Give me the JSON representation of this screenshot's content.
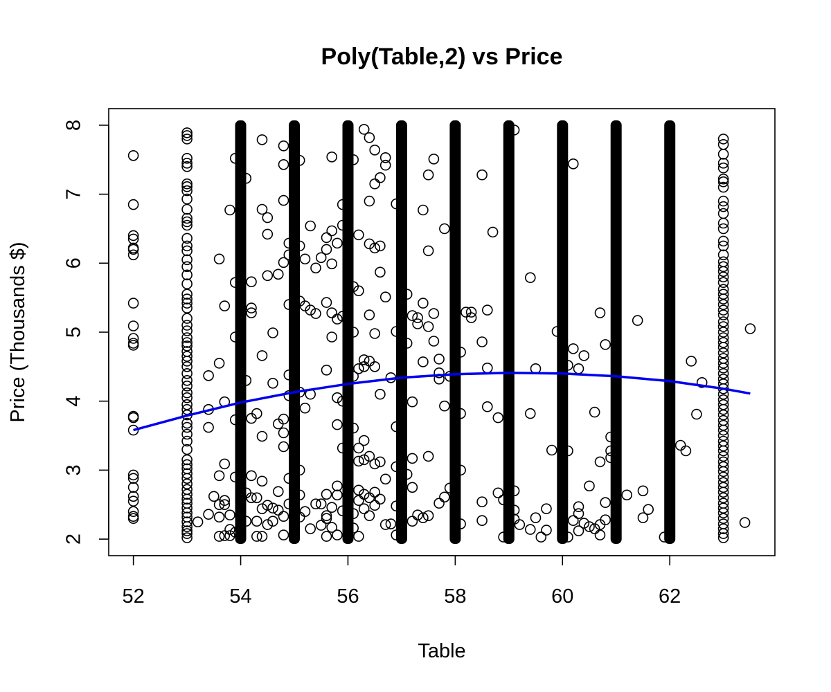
{
  "chart_data": {
    "type": "scatter",
    "title": "Poly(Table,2) vs Price",
    "xlabel": "Table",
    "ylabel": "Price (Thousands $)",
    "xlim": [
      51.54,
      63.96
    ],
    "ylim": [
      1.76,
      8.24
    ],
    "x_ticks": [
      52,
      54,
      56,
      58,
      60,
      62
    ],
    "y_ticks": [
      2,
      3,
      4,
      5,
      6,
      7,
      8
    ],
    "grid": false,
    "legend": "none",
    "marker": "open-circle",
    "point_color": "#000000",
    "fit_line": {
      "name": "",
      "color": "#0000ee",
      "x": [
        52,
        53,
        54,
        55,
        56,
        57,
        58,
        59,
        60,
        61,
        62,
        63,
        63.5
      ],
      "y": [
        3.58,
        3.79,
        3.98,
        4.13,
        4.25,
        4.34,
        4.39,
        4.41,
        4.4,
        4.36,
        4.29,
        4.18,
        4.11
      ]
    },
    "columns": [
      {
        "x": 52,
        "ys": [
          7.56,
          6.85,
          6.4,
          6.35,
          6.22,
          6.2,
          6.12,
          5.42,
          5.09,
          4.91,
          4.84,
          4.81,
          3.78,
          3.76,
          3.58,
          2.93,
          2.88,
          2.75,
          2.62,
          2.55,
          2.4,
          2.33,
          2.3
        ]
      },
      {
        "x": 53,
        "ys": [
          7.89,
          7.85,
          7.8,
          7.52,
          7.45,
          7.4,
          7.15,
          7.11,
          7.05,
          6.93,
          6.78,
          6.65,
          6.6,
          6.55,
          6.36,
          6.25,
          6.18,
          6.05,
          5.95,
          5.83,
          5.7,
          5.55,
          5.48,
          5.42,
          5.35,
          5.2,
          5.1,
          5.02,
          4.92,
          4.85,
          4.8,
          4.72,
          4.65,
          4.58,
          4.5,
          4.4,
          4.3,
          4.22,
          4.12,
          4.05,
          3.95,
          3.88,
          3.8,
          3.68,
          3.62,
          3.52,
          3.42,
          3.3,
          3.15,
          3.08,
          3.02,
          2.95,
          2.88,
          2.8,
          2.72,
          2.65,
          2.58,
          2.52,
          2.45,
          2.38,
          2.32,
          2.25,
          2.18,
          2.12,
          2.08,
          2.02
        ]
      },
      {
        "x": 63,
        "ys": [
          7.8,
          7.72,
          7.58,
          7.45,
          7.38,
          7.22,
          7.18,
          7.1,
          6.9,
          6.82,
          6.72,
          6.58,
          6.5,
          6.32,
          6.25,
          6.12,
          6.02,
          5.95,
          5.88,
          5.8,
          5.72,
          5.62,
          5.55,
          5.48,
          5.4,
          5.32,
          5.25,
          5.15,
          5.08,
          5.0,
          4.92,
          4.85,
          4.78,
          4.7,
          4.62,
          4.55,
          4.48,
          4.4,
          4.32,
          4.25,
          4.18,
          4.1,
          4.02,
          3.95,
          3.88,
          3.8,
          3.72,
          3.65,
          3.58,
          3.5,
          3.42,
          3.35,
          3.28,
          3.2,
          3.12,
          3.05,
          2.98,
          2.9,
          2.82,
          2.75,
          2.68,
          2.6,
          2.52,
          2.45,
          2.38,
          2.3,
          2.22,
          2.15,
          2.08,
          2.02
        ]
      }
    ],
    "dense_columns": [
      {
        "x": 54,
        "y_range": [
          2.0,
          8.0
        ]
      },
      {
        "x": 55,
        "y_range": [
          2.0,
          8.0
        ]
      },
      {
        "x": 56,
        "y_range": [
          2.0,
          8.0
        ]
      },
      {
        "x": 57,
        "y_range": [
          2.0,
          8.0
        ]
      },
      {
        "x": 58,
        "y_range": [
          2.0,
          8.0
        ]
      },
      {
        "x": 59,
        "y_range": [
          2.0,
          8.0
        ]
      },
      {
        "x": 60,
        "y_range": [
          2.0,
          8.0
        ]
      },
      {
        "x": 61,
        "y_range": [
          2.0,
          8.0
        ]
      },
      {
        "x": 62,
        "y_range": [
          2.0,
          8.0
        ]
      }
    ],
    "points": [
      [
        53.2,
        2.25
      ],
      [
        53.4,
        4.37
      ],
      [
        53.4,
        3.88
      ],
      [
        53.4,
        3.62
      ],
      [
        53.4,
        2.36
      ],
      [
        53.5,
        2.62
      ],
      [
        53.6,
        6.06
      ],
      [
        53.6,
        4.55
      ],
      [
        53.6,
        2.92
      ],
      [
        53.6,
        2.5
      ],
      [
        53.6,
        2.32
      ],
      [
        53.6,
        2.04
      ],
      [
        53.7,
        5.38
      ],
      [
        53.7,
        3.99
      ],
      [
        53.7,
        3.09
      ],
      [
        53.7,
        2.56
      ],
      [
        53.7,
        2.5
      ],
      [
        53.7,
        2.05
      ],
      [
        53.8,
        6.77
      ],
      [
        53.8,
        2.35
      ],
      [
        53.8,
        2.14
      ],
      [
        53.8,
        2.05
      ],
      [
        53.9,
        7.52
      ],
      [
        53.9,
        5.72
      ],
      [
        53.9,
        4.93
      ],
      [
        53.9,
        3.73
      ],
      [
        53.9,
        2.9
      ],
      [
        53.9,
        2.1
      ],
      [
        54.1,
        7.23
      ],
      [
        54.1,
        4.3
      ],
      [
        54.1,
        2.67
      ],
      [
        54.1,
        2.26
      ],
      [
        54.2,
        5.73
      ],
      [
        54.2,
        5.35
      ],
      [
        54.2,
        5.28
      ],
      [
        54.2,
        3.75
      ],
      [
        54.2,
        2.6
      ],
      [
        54.2,
        2.92
      ],
      [
        54.3,
        2.6
      ],
      [
        54.3,
        2.26
      ],
      [
        54.3,
        3.82
      ],
      [
        54.3,
        2.04
      ],
      [
        54.4,
        7.79
      ],
      [
        54.4,
        6.78
      ],
      [
        54.4,
        4.66
      ],
      [
        54.4,
        3.49
      ],
      [
        54.4,
        2.84
      ],
      [
        54.4,
        2.44
      ],
      [
        54.4,
        2.04
      ],
      [
        54.5,
        6.66
      ],
      [
        54.5,
        6.42
      ],
      [
        54.5,
        5.82
      ],
      [
        54.5,
        2.49
      ],
      [
        54.5,
        2.21
      ],
      [
        54.6,
        4.99
      ],
      [
        54.6,
        4.26
      ],
      [
        54.6,
        2.45
      ],
      [
        54.6,
        2.26
      ],
      [
        54.7,
        5.84
      ],
      [
        54.7,
        3.67
      ],
      [
        54.7,
        2.42
      ],
      [
        54.7,
        2.69
      ],
      [
        54.8,
        7.7
      ],
      [
        54.8,
        7.43
      ],
      [
        54.8,
        6.91
      ],
      [
        54.8,
        6.01
      ],
      [
        54.8,
        3.74
      ],
      [
        54.8,
        3.54
      ],
      [
        54.8,
        3.34
      ],
      [
        54.8,
        2.33
      ],
      [
        54.8,
        2.06
      ],
      [
        54.9,
        6.29
      ],
      [
        54.9,
        6.12
      ],
      [
        54.9,
        5.4
      ],
      [
        54.9,
        4.38
      ],
      [
        54.9,
        4.08
      ],
      [
        54.9,
        2.88
      ],
      [
        54.9,
        2.51
      ],
      [
        55.1,
        7.49
      ],
      [
        55.1,
        6.25
      ],
      [
        55.1,
        5.45
      ],
      [
        55.1,
        4.13
      ],
      [
        55.1,
        3.0
      ],
      [
        55.1,
        2.64
      ],
      [
        55.1,
        2.32
      ],
      [
        55.2,
        6.06
      ],
      [
        55.2,
        5.38
      ],
      [
        55.2,
        3.9
      ],
      [
        55.2,
        2.4
      ],
      [
        55.3,
        6.54
      ],
      [
        55.3,
        5.32
      ],
      [
        55.3,
        4.1
      ],
      [
        55.3,
        2.15
      ],
      [
        55.4,
        5.93
      ],
      [
        55.4,
        5.27
      ],
      [
        55.4,
        2.51
      ],
      [
        55.5,
        6.08
      ],
      [
        55.5,
        2.51
      ],
      [
        55.5,
        2.2
      ],
      [
        55.6,
        6.37
      ],
      [
        55.6,
        6.2
      ],
      [
        55.6,
        5.43
      ],
      [
        55.6,
        4.45
      ],
      [
        55.6,
        2.65
      ],
      [
        55.6,
        2.34
      ],
      [
        55.6,
        2.3
      ],
      [
        55.6,
        2.04
      ],
      [
        55.7,
        7.54
      ],
      [
        55.7,
        6.47
      ],
      [
        55.7,
        5.99
      ],
      [
        55.7,
        5.28
      ],
      [
        55.7,
        4.93
      ],
      [
        55.7,
        2.46
      ],
      [
        55.7,
        2.17
      ],
      [
        55.8,
        6.29
      ],
      [
        55.8,
        5.19
      ],
      [
        55.8,
        4.05
      ],
      [
        55.8,
        3.66
      ],
      [
        55.8,
        2.77
      ],
      [
        55.8,
        2.64
      ],
      [
        55.8,
        2.06
      ],
      [
        55.9,
        6.85
      ],
      [
        55.9,
        6.55
      ],
      [
        55.9,
        5.23
      ],
      [
        55.9,
        4.0
      ],
      [
        55.9,
        3.32
      ],
      [
        55.9,
        2.41
      ],
      [
        56.1,
        7.5
      ],
      [
        56.1,
        5.66
      ],
      [
        56.1,
        5.0
      ],
      [
        56.1,
        4.36
      ],
      [
        56.1,
        3.61
      ],
      [
        56.1,
        2.37
      ],
      [
        56.1,
        2.16
      ],
      [
        56.2,
        6.41
      ],
      [
        56.2,
        5.6
      ],
      [
        56.2,
        4.47
      ],
      [
        56.2,
        3.32
      ],
      [
        56.2,
        3.13
      ],
      [
        56.2,
        2.71
      ],
      [
        56.2,
        2.56
      ],
      [
        56.2,
        2.04
      ],
      [
        56.3,
        7.94
      ],
      [
        56.3,
        4.6
      ],
      [
        56.3,
        4.5
      ],
      [
        56.3,
        3.43
      ],
      [
        56.3,
        3.15
      ],
      [
        56.3,
        2.65
      ],
      [
        56.3,
        2.44
      ],
      [
        56.4,
        7.82
      ],
      [
        56.4,
        6.9
      ],
      [
        56.4,
        6.28
      ],
      [
        56.4,
        5.25
      ],
      [
        56.4,
        4.58
      ],
      [
        56.4,
        3.2
      ],
      [
        56.4,
        2.6
      ],
      [
        56.4,
        2.34
      ],
      [
        56.5,
        7.64
      ],
      [
        56.5,
        7.15
      ],
      [
        56.5,
        6.22
      ],
      [
        56.5,
        4.98
      ],
      [
        56.5,
        4.5
      ],
      [
        56.5,
        3.09
      ],
      [
        56.5,
        2.68
      ],
      [
        56.5,
        2.49
      ],
      [
        56.6,
        7.24
      ],
      [
        56.6,
        6.25
      ],
      [
        56.6,
        5.87
      ],
      [
        56.6,
        4.1
      ],
      [
        56.6,
        3.12
      ],
      [
        56.6,
        2.58
      ],
      [
        56.7,
        7.53
      ],
      [
        56.7,
        7.42
      ],
      [
        56.7,
        5.51
      ],
      [
        56.7,
        2.87
      ],
      [
        56.7,
        2.21
      ],
      [
        56.8,
        4.34
      ],
      [
        56.8,
        2.22
      ],
      [
        56.9,
        6.86
      ],
      [
        56.9,
        5.01
      ],
      [
        56.9,
        3.63
      ],
      [
        56.9,
        3.05
      ],
      [
        56.9,
        2.48
      ],
      [
        56.9,
        2.06
      ],
      [
        57.1,
        5.55
      ],
      [
        57.1,
        4.84
      ],
      [
        57.1,
        2.94
      ],
      [
        57.2,
        5.24
      ],
      [
        57.2,
        3.99
      ],
      [
        57.2,
        3.17
      ],
      [
        57.2,
        2.75
      ],
      [
        57.2,
        2.26
      ],
      [
        57.3,
        5.21
      ],
      [
        57.3,
        5.12
      ],
      [
        57.3,
        2.35
      ],
      [
        57.4,
        6.77
      ],
      [
        57.4,
        5.42
      ],
      [
        57.4,
        4.57
      ],
      [
        57.4,
        2.31
      ],
      [
        57.5,
        7.28
      ],
      [
        57.5,
        6.18
      ],
      [
        57.5,
        5.08
      ],
      [
        57.5,
        3.2
      ],
      [
        57.5,
        2.34
      ],
      [
        57.6,
        7.51
      ],
      [
        57.6,
        5.27
      ],
      [
        57.6,
        4.87
      ],
      [
        57.7,
        4.61
      ],
      [
        57.7,
        4.41
      ],
      [
        57.7,
        4.32
      ],
      [
        57.7,
        2.52
      ],
      [
        57.8,
        6.5
      ],
      [
        57.8,
        3.93
      ],
      [
        57.8,
        2.61
      ],
      [
        57.9,
        2.74
      ],
      [
        57.9,
        4.36
      ],
      [
        58.1,
        4.71
      ],
      [
        58.1,
        3.82
      ],
      [
        58.1,
        3.0
      ],
      [
        58.1,
        2.22
      ],
      [
        58.2,
        5.29
      ],
      [
        58.3,
        5.29
      ],
      [
        58.3,
        5.21
      ],
      [
        58.5,
        7.28
      ],
      [
        58.5,
        4.86
      ],
      [
        58.5,
        2.54
      ],
      [
        58.5,
        2.27
      ],
      [
        58.6,
        5.32
      ],
      [
        58.6,
        4.48
      ],
      [
        58.6,
        3.92
      ],
      [
        58.7,
        6.45
      ],
      [
        58.8,
        3.76
      ],
      [
        58.8,
        2.67
      ],
      [
        58.9,
        2.57
      ],
      [
        58.9,
        2.03
      ],
      [
        59.1,
        7.93
      ],
      [
        59.1,
        2.7
      ],
      [
        59.1,
        2.42
      ],
      [
        59.1,
        2.29
      ],
      [
        59.2,
        2.21
      ],
      [
        59.4,
        5.79
      ],
      [
        59.4,
        3.82
      ],
      [
        59.4,
        2.14
      ],
      [
        59.5,
        4.47
      ],
      [
        59.5,
        2.31
      ],
      [
        59.6,
        2.03
      ],
      [
        59.7,
        2.44
      ],
      [
        59.7,
        2.13
      ],
      [
        59.8,
        3.29
      ],
      [
        59.9,
        5.01
      ],
      [
        60.1,
        4.52
      ],
      [
        60.1,
        3.28
      ],
      [
        60.1,
        2.03
      ],
      [
        60.2,
        7.44
      ],
      [
        60.2,
        4.76
      ],
      [
        60.2,
        2.27
      ],
      [
        60.3,
        4.47
      ],
      [
        60.3,
        2.47
      ],
      [
        60.3,
        2.37
      ],
      [
        60.3,
        2.12
      ],
      [
        60.4,
        4.66
      ],
      [
        60.4,
        2.23
      ],
      [
        60.5,
        2.77
      ],
      [
        60.5,
        2.18
      ],
      [
        60.6,
        3.84
      ],
      [
        60.6,
        2.15
      ],
      [
        60.7,
        5.28
      ],
      [
        60.7,
        3.12
      ],
      [
        60.7,
        2.21
      ],
      [
        60.7,
        2.06
      ],
      [
        60.8,
        4.82
      ],
      [
        60.8,
        2.53
      ],
      [
        60.8,
        2.28
      ],
      [
        60.9,
        3.48
      ],
      [
        60.9,
        3.28
      ],
      [
        60.9,
        3.18
      ],
      [
        61.2,
        2.64
      ],
      [
        61.4,
        5.17
      ],
      [
        61.5,
        2.7
      ],
      [
        61.5,
        2.31
      ],
      [
        61.6,
        2.43
      ],
      [
        61.9,
        2.03
      ],
      [
        62.2,
        3.36
      ],
      [
        62.3,
        3.28
      ],
      [
        62.4,
        4.58
      ],
      [
        62.5,
        3.81
      ],
      [
        62.6,
        4.27
      ],
      [
        63.4,
        2.24
      ],
      [
        63.5,
        5.05
      ]
    ]
  }
}
